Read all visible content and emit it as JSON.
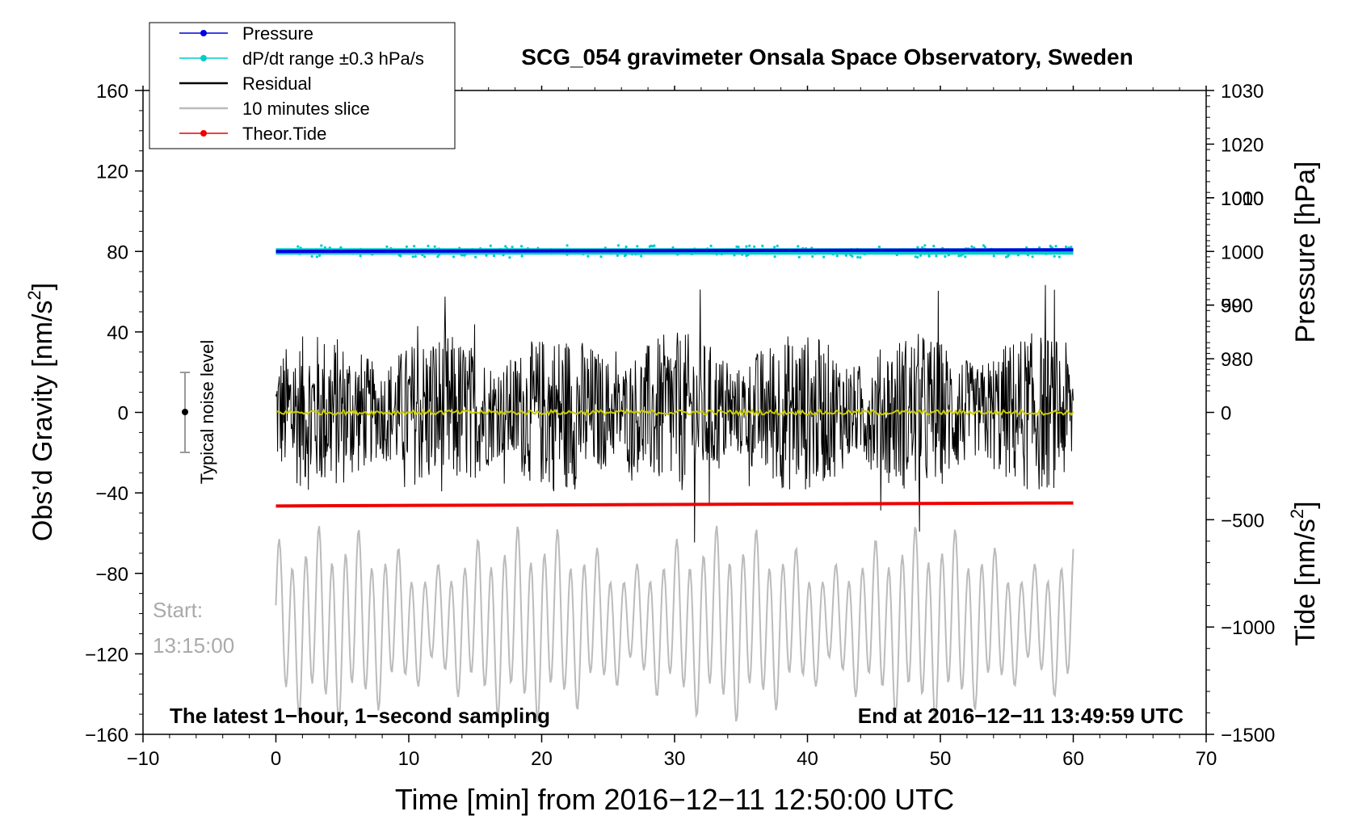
{
  "chart_data": {
    "type": "line",
    "title": "SCG_054 gravimeter Onsala Space Observatory, Sweden",
    "xlabel": "Time [min] from 2016−12−11 12:50:00 UTC",
    "ylabel_left": "Obs’d Gravity [nm/s",
    "ylabel_left_sup": "2",
    "ylabel_left_end": "]",
    "ylabel_right_pressure": "Pressure [hPa]",
    "ylabel_right_tide": "Tide [nm/s",
    "ylabel_right_tide_sup": "2",
    "ylabel_right_tide_end": "]",
    "xlim": [
      -10,
      70
    ],
    "ylim_left": [
      -160,
      160
    ],
    "pressure_axis": {
      "range": [
        910,
        1030
      ],
      "ticks": [
        980,
        990,
        1000,
        1010,
        1020,
        1030
      ]
    },
    "tide_axis": {
      "range": [
        -1500,
        1500
      ],
      "ticks": [
        -1500,
        -1000,
        -500,
        0,
        500,
        1000
      ]
    },
    "x_ticks": [
      -10,
      0,
      10,
      20,
      30,
      40,
      50,
      60,
      70
    ],
    "x_tick_labels": [
      "−10",
      "0",
      "10",
      "20",
      "30",
      "40",
      "50",
      "60",
      "70"
    ],
    "y_ticks": [
      -160,
      -120,
      -80,
      -40,
      0,
      40,
      80,
      120,
      160
    ],
    "y_tick_labels": [
      "−160",
      "−120",
      "−80",
      "−40",
      "0",
      "40",
      "80",
      "120",
      "160"
    ],
    "tide_tick_labels": [
      "−1500",
      "−1000",
      "−500",
      "0",
      "500",
      "1000"
    ],
    "legend": [
      {
        "label": "Pressure",
        "color": "#0000dd",
        "marker": true
      },
      {
        "label": "dP/dt range ±0.3 hPa/s",
        "color": "#00cccc",
        "marker": true
      },
      {
        "label": "Residual",
        "color": "#000000",
        "marker": false
      },
      {
        "label": "10 minutes slice",
        "color": "#bbbbbb",
        "marker": false
      },
      {
        "label": "Theor.Tide",
        "color": "#ee0000",
        "marker": true
      }
    ],
    "series": [
      {
        "name": "Pressure",
        "axis": "pressure",
        "x": [
          0,
          60
        ],
        "y": [
          1000.0,
          1000.3
        ],
        "color": "#0000dd"
      },
      {
        "name": "dP/dt range ±0.3 hPa/s",
        "axis": "left",
        "x": [
          0,
          60
        ],
        "y": [
          80,
          80
        ],
        "color": "#00cccc"
      },
      {
        "name": "Residual",
        "axis": "left",
        "x_range": [
          0,
          60
        ],
        "amplitude": 40,
        "color": "#000000"
      },
      {
        "name": "Residual (smoothed)",
        "axis": "left",
        "x": [
          0,
          60
        ],
        "y": [
          0,
          0
        ],
        "color": "#cccc00"
      },
      {
        "name": "10 minutes slice",
        "axis": "left",
        "x_range": [
          0,
          60
        ],
        "center": -105,
        "amplitude": 45,
        "color": "#bbbbbb"
      },
      {
        "name": "Theor.Tide",
        "axis": "left",
        "x": [
          0,
          60
        ],
        "y": [
          -46.5,
          -45
        ],
        "color": "#ee0000"
      }
    ],
    "noise_annotation": {
      "label": "Typical noise level",
      "x": -7,
      "y": 0,
      "yerr": 20
    },
    "start_label": "Start:",
    "start_time": "13:15:00",
    "bottom_left_note": "The latest 1−hour, 1−second sampling",
    "bottom_right_note": "End at 2016−12−11 13:49:59 UTC",
    "grid": false
  }
}
